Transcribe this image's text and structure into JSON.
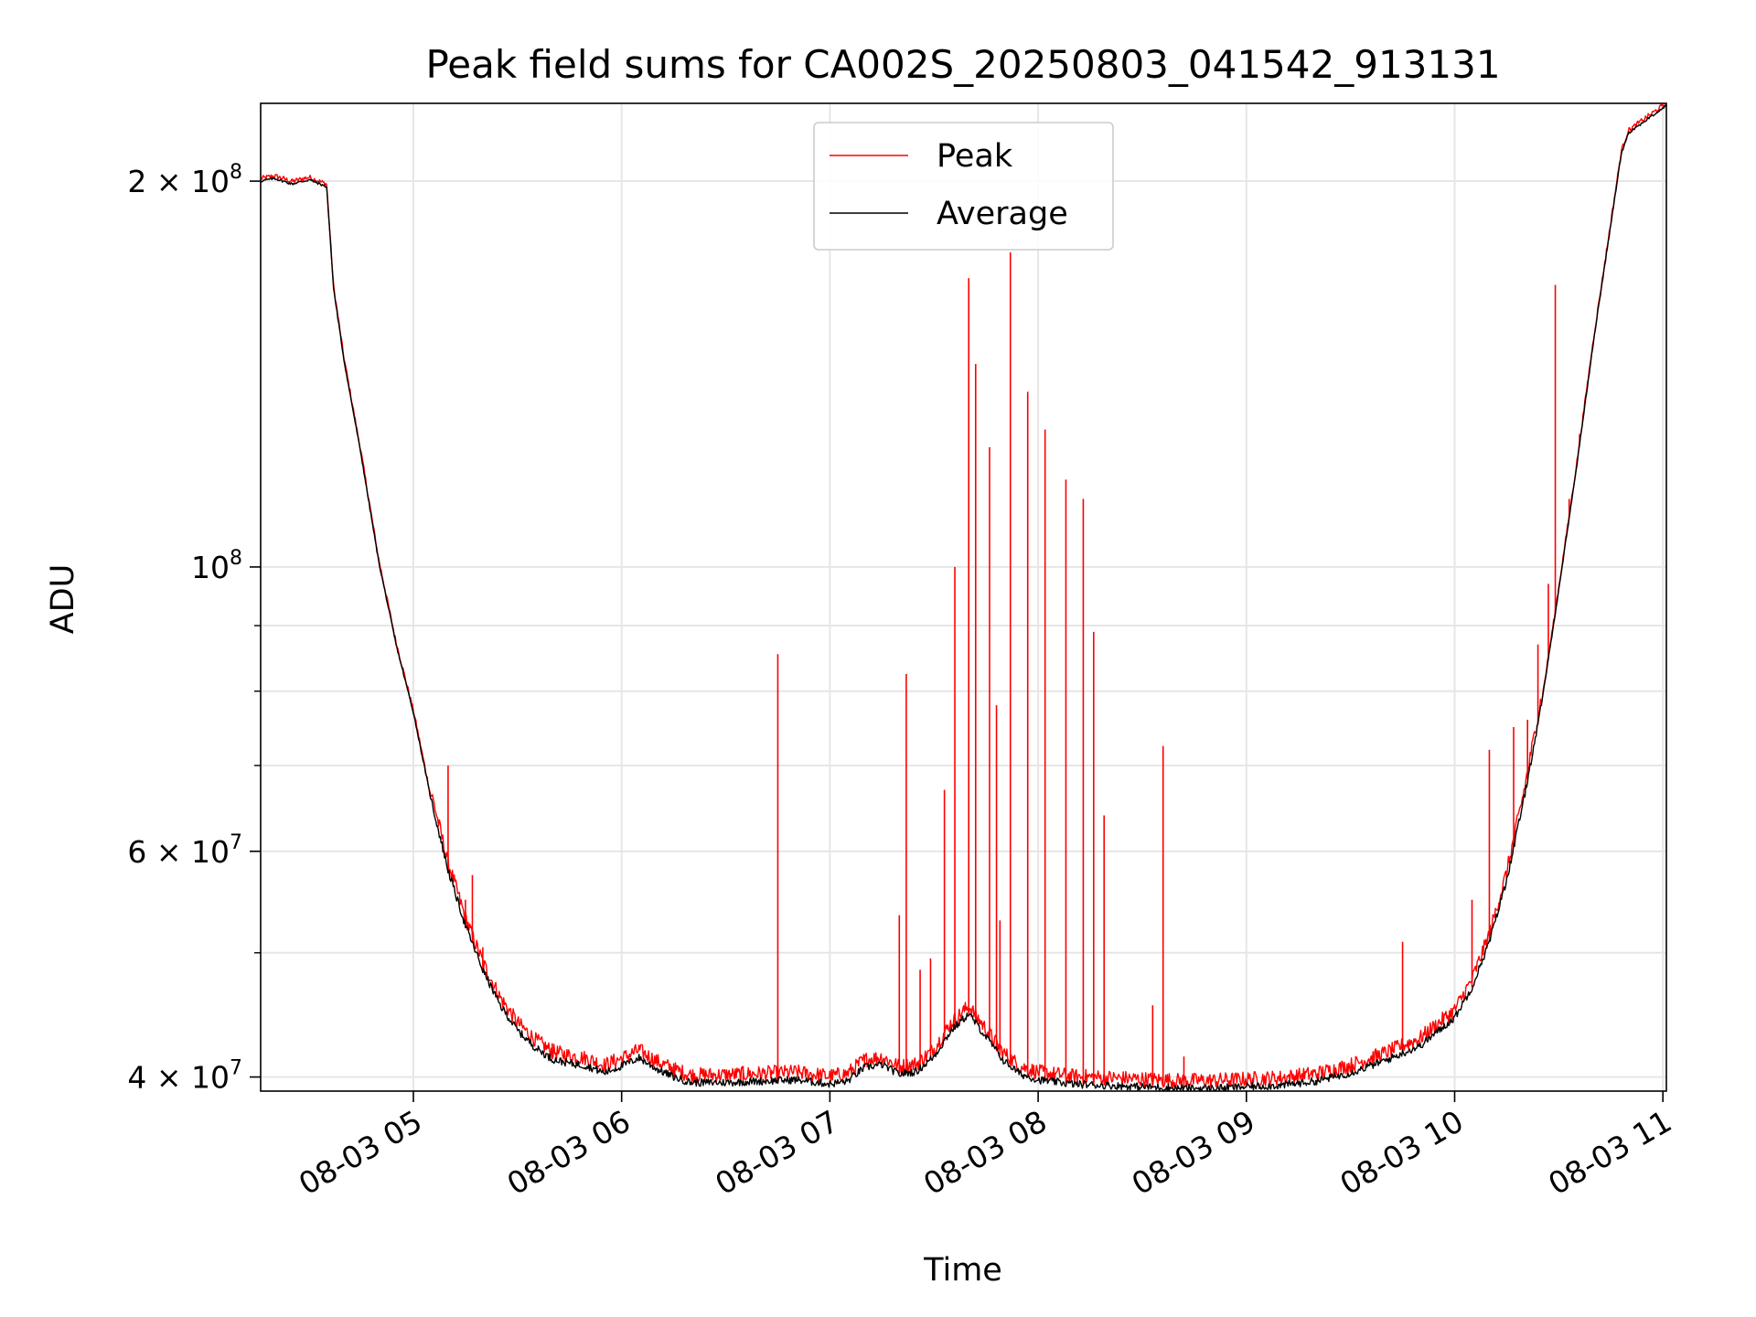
{
  "chart_data": {
    "type": "line",
    "title": "Peak field sums for CA002S_20250803_041542_913131",
    "xlabel": "Time",
    "ylabel": "ADU",
    "yscale": "log",
    "x_unit": "time (2025-08-03, HH:MM)",
    "xlim": [
      "04:16",
      "11:01"
    ],
    "ylim": [
      39000000,
      230000000
    ],
    "grid": true,
    "legend_position": "top-center",
    "x_ticks": [
      {
        "value": "05:00",
        "label": "08-03 05"
      },
      {
        "value": "06:00",
        "label": "08-03 06"
      },
      {
        "value": "07:00",
        "label": "08-03 07"
      },
      {
        "value": "08:00",
        "label": "08-03 08"
      },
      {
        "value": "09:00",
        "label": "08-03 09"
      },
      {
        "value": "10:00",
        "label": "08-03 10"
      },
      {
        "value": "11:00",
        "label": "08-03 11"
      }
    ],
    "y_ticks": [
      {
        "value": 40000000,
        "base": "4 × 10",
        "exp": "7"
      },
      {
        "value": 60000000,
        "base": "6 × 10",
        "exp": "7"
      },
      {
        "value": 100000000,
        "base": "10",
        "exp": "8"
      },
      {
        "value": 200000000,
        "base": "2 × 10",
        "exp": "8"
      }
    ],
    "series": [
      {
        "name": "Average",
        "color": "#000000",
        "points": [
          [
            "04:16",
            200000000
          ],
          [
            "04:20",
            201000000
          ],
          [
            "04:25",
            199000000
          ],
          [
            "04:30",
            200500000
          ],
          [
            "04:35",
            198000000
          ],
          [
            "04:37",
            165000000
          ],
          [
            "04:40",
            145000000
          ],
          [
            "04:45",
            122000000
          ],
          [
            "04:50",
            101000000
          ],
          [
            "04:55",
            87000000
          ],
          [
            "05:00",
            77000000
          ],
          [
            "05:05",
            66000000
          ],
          [
            "05:10",
            58000000
          ],
          [
            "05:15",
            52500000
          ],
          [
            "05:20",
            48500000
          ],
          [
            "05:25",
            45500000
          ],
          [
            "05:30",
            43500000
          ],
          [
            "05:35",
            42200000
          ],
          [
            "05:40",
            41300000
          ],
          [
            "05:45",
            41000000
          ],
          [
            "05:50",
            40800000
          ],
          [
            "05:55",
            40300000
          ],
          [
            "06:00",
            40800000
          ],
          [
            "06:05",
            41400000
          ],
          [
            "06:10",
            40600000
          ],
          [
            "06:15",
            40000000
          ],
          [
            "06:20",
            39600000
          ],
          [
            "06:30",
            39600000
          ],
          [
            "06:40",
            39700000
          ],
          [
            "06:50",
            39800000
          ],
          [
            "07:00",
            39500000
          ],
          [
            "07:05",
            39700000
          ],
          [
            "07:10",
            40700000
          ],
          [
            "07:15",
            40900000
          ],
          [
            "07:20",
            40200000
          ],
          [
            "07:25",
            40400000
          ],
          [
            "07:30",
            41500000
          ],
          [
            "07:35",
            43500000
          ],
          [
            "07:40",
            44800000
          ],
          [
            "07:45",
            43000000
          ],
          [
            "07:50",
            41200000
          ],
          [
            "07:55",
            40200000
          ],
          [
            "08:00",
            39800000
          ],
          [
            "08:10",
            39500000
          ],
          [
            "08:20",
            39400000
          ],
          [
            "08:30",
            39300000
          ],
          [
            "08:40",
            39200000
          ],
          [
            "08:50",
            39200000
          ],
          [
            "09:00",
            39300000
          ],
          [
            "09:10",
            39400000
          ],
          [
            "09:20",
            39700000
          ],
          [
            "09:30",
            40300000
          ],
          [
            "09:40",
            41200000
          ],
          [
            "09:50",
            42300000
          ],
          [
            "10:00",
            44500000
          ],
          [
            "10:05",
            47000000
          ],
          [
            "10:10",
            51000000
          ],
          [
            "10:15",
            57000000
          ],
          [
            "10:20",
            66000000
          ],
          [
            "10:25",
            78000000
          ],
          [
            "10:30",
            96000000
          ],
          [
            "10:35",
            119000000
          ],
          [
            "10:40",
            150000000
          ],
          [
            "10:45",
            185000000
          ],
          [
            "10:48",
            210000000
          ],
          [
            "10:50",
            218000000
          ],
          [
            "10:55",
            223000000
          ],
          [
            "11:00",
            228000000
          ],
          [
            "11:01",
            229000000
          ]
        ]
      },
      {
        "name": "Peak",
        "color": "#ff0000",
        "spikes": [
          [
            "05:10",
            70000000
          ],
          [
            "05:15",
            55000000
          ],
          [
            "05:17",
            57500000
          ],
          [
            "05:20",
            50500000
          ],
          [
            "05:40",
            42500000
          ],
          [
            "06:15",
            41000000
          ],
          [
            "06:35",
            40800000
          ],
          [
            "06:45",
            85500000
          ],
          [
            "07:10",
            41500000
          ],
          [
            "07:20",
            53500000
          ],
          [
            "07:22",
            82500000
          ],
          [
            "07:26",
            48500000
          ],
          [
            "07:29",
            49500000
          ],
          [
            "07:33",
            67000000
          ],
          [
            "07:36",
            100000000
          ],
          [
            "07:40",
            168000000
          ],
          [
            "07:42",
            144000000
          ],
          [
            "07:46",
            124000000
          ],
          [
            "07:48",
            78000000
          ],
          [
            "07:49",
            53000000
          ],
          [
            "07:52",
            176000000
          ],
          [
            "07:57",
            137000000
          ],
          [
            "08:02",
            128000000
          ],
          [
            "08:08",
            117000000
          ],
          [
            "08:13",
            113000000
          ],
          [
            "08:16",
            89000000
          ],
          [
            "08:19",
            64000000
          ],
          [
            "08:33",
            45500000
          ],
          [
            "08:36",
            72500000
          ],
          [
            "08:42",
            41500000
          ],
          [
            "09:45",
            51000000
          ],
          [
            "10:05",
            55000000
          ],
          [
            "10:10",
            72000000
          ],
          [
            "10:17",
            75000000
          ],
          [
            "10:21",
            76000000
          ],
          [
            "10:24",
            87000000
          ],
          [
            "10:27",
            97000000
          ],
          [
            "10:29",
            166000000
          ],
          [
            "10:33",
            113000000
          ],
          [
            "10:36",
            127000000
          ]
        ]
      }
    ]
  }
}
